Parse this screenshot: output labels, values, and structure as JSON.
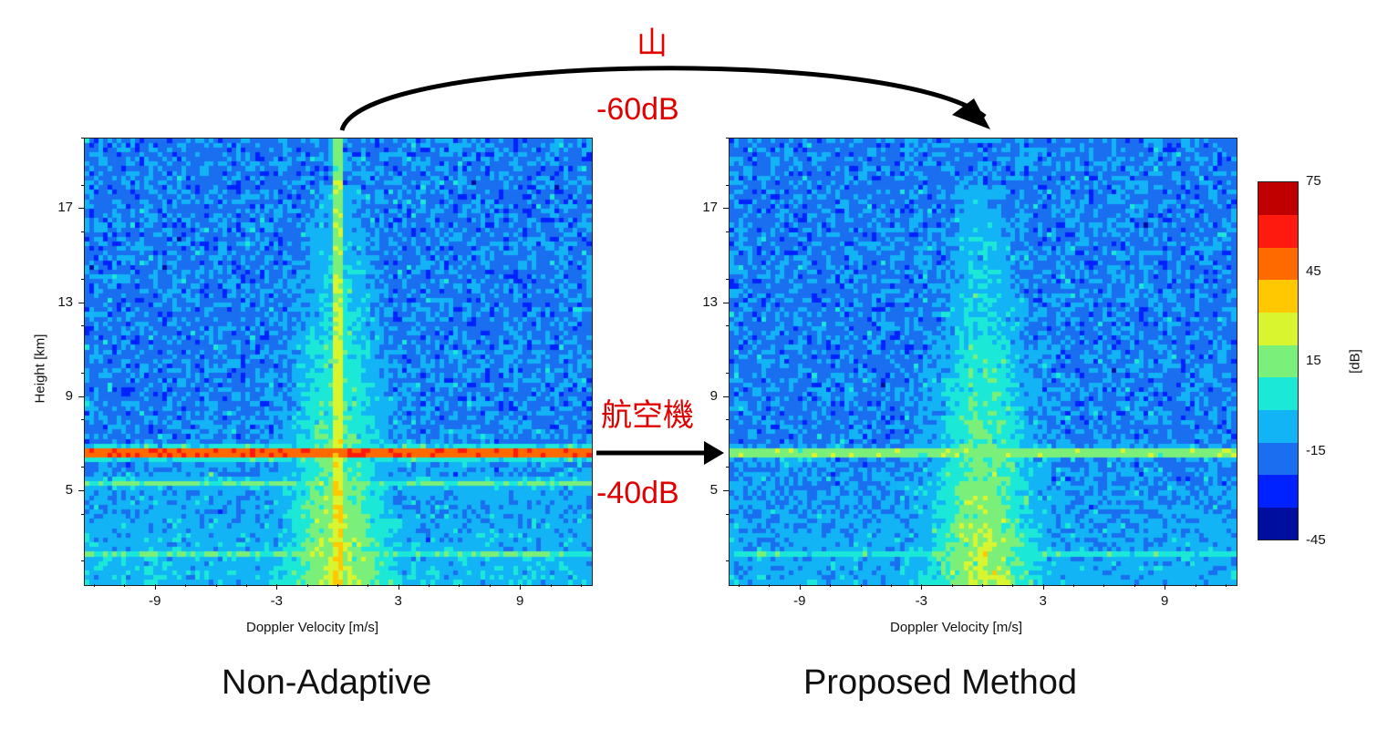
{
  "annotations": {
    "mountain_label": "山",
    "mountain_db": "-60dB",
    "aircraft_label": "航空機",
    "aircraft_db": "-40dB"
  },
  "captions": {
    "left": "Non-Adaptive",
    "right": "Proposed Method"
  },
  "colorbar": {
    "label": "[dB]",
    "range": [
      -45,
      75
    ],
    "ticks": [
      "75",
      "45",
      "15",
      "-15",
      "-45"
    ],
    "tick_values": [
      75,
      45,
      15,
      -15,
      -45
    ],
    "colors": [
      "#000ea0",
      "#0022ff",
      "#1a6ef0",
      "#12b4f5",
      "#1ce8d8",
      "#7af07a",
      "#d8f530",
      "#ffc800",
      "#ff6a00",
      "#ff1a10",
      "#c00000"
    ]
  },
  "chart_data": [
    {
      "type": "heatmap",
      "title": "Non-Adaptive",
      "xlabel": "Doppler Velocity [m/s]",
      "ylabel": "Height [km]",
      "xlim": [
        -12.5,
        12.5
      ],
      "ylim": [
        1,
        20
      ],
      "x_ticks": [
        "-9",
        "-3",
        "3",
        "9"
      ],
      "x_tick_values": [
        -9,
        -3,
        3,
        9
      ],
      "y_ticks": [
        "17",
        "13",
        "9",
        "5"
      ],
      "y_tick_values": [
        17,
        13,
        9,
        5
      ],
      "background_db": -15,
      "features": [
        {
          "name": "aircraft",
          "kind": "horizontal-band",
          "height_km": 6.6,
          "peak_db": 62,
          "spread_km": 0.25
        },
        {
          "name": "secondary-band",
          "kind": "horizontal-band",
          "height_km": 5.3,
          "peak_db": 10,
          "spread_km": 0.2
        },
        {
          "name": "lower-band",
          "kind": "horizontal-band",
          "height_km": 2.3,
          "peak_db": 10,
          "spread_km": 0.15
        },
        {
          "name": "upper-band",
          "kind": "horizontal-band",
          "height_km": 11.0,
          "peak_db": 15,
          "velocity_range": [
            -1.5,
            1.5
          ]
        },
        {
          "name": "mountain",
          "kind": "vertical-line",
          "velocity": 0.0,
          "peak_db": 58,
          "height_range": [
            1,
            20
          ]
        },
        {
          "name": "atmosphere",
          "kind": "spectral-plume",
          "velocity": 0.0,
          "peak_db": 30,
          "height_range": [
            1,
            18
          ]
        },
        {
          "name": "low-altitude-noise",
          "kind": "ground-region",
          "height_range": [
            1,
            8
          ],
          "peak_db": 0
        }
      ]
    },
    {
      "type": "heatmap",
      "title": "Proposed Method",
      "xlabel": "Doppler Velocity [m/s]",
      "ylabel": "",
      "xlim": [
        -12.5,
        12.5
      ],
      "ylim": [
        1,
        20
      ],
      "x_ticks": [
        "-9",
        "-3",
        "3",
        "9"
      ],
      "x_tick_values": [
        -9,
        -3,
        3,
        9
      ],
      "y_ticks": [
        "17",
        "13",
        "9",
        "5"
      ],
      "y_tick_values": [
        17,
        13,
        9,
        5
      ],
      "background_db": -15,
      "features": [
        {
          "name": "aircraft",
          "kind": "horizontal-band",
          "height_km": 6.6,
          "peak_db": 25,
          "spread_km": 0.2
        },
        {
          "name": "upper-band",
          "kind": "horizontal-band",
          "height_km": 11.0,
          "peak_db": 12,
          "velocity_range": [
            -1.5,
            1.5
          ]
        },
        {
          "name": "lower-band",
          "kind": "horizontal-band",
          "height_km": 2.3,
          "peak_db": 5,
          "spread_km": 0.15
        },
        {
          "name": "mountain",
          "kind": "vertical-line",
          "velocity": 0.0,
          "peak_db": 0,
          "height_range": [
            1,
            20
          ]
        },
        {
          "name": "atmosphere",
          "kind": "spectral-plume",
          "velocity": 0.0,
          "peak_db": 30,
          "height_range": [
            1,
            18
          ]
        },
        {
          "name": "low-altitude-noise",
          "kind": "ground-region",
          "height_range": [
            1,
            8
          ],
          "peak_db": -5
        }
      ]
    }
  ]
}
